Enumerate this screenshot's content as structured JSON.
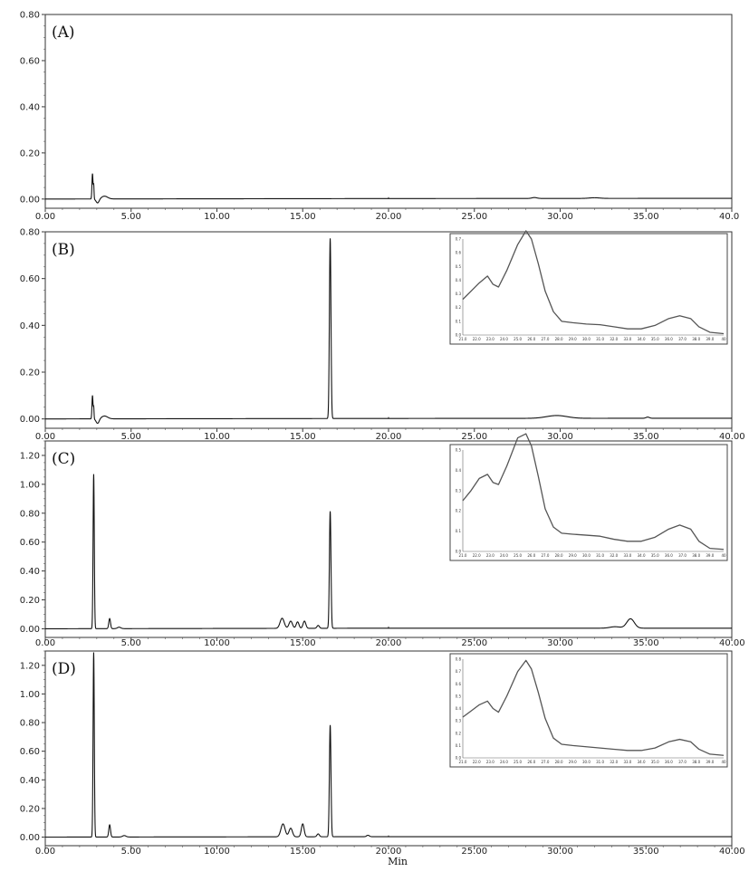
{
  "chart_data": [
    {
      "type": "line",
      "panel_label": "(A)",
      "xlabel": "",
      "ylabel": "",
      "xlim": [
        0,
        40
      ],
      "ylim": [
        -0.04,
        0.8
      ],
      "x_ticks": [
        "0.00",
        "5.00",
        "10.00",
        "15.00",
        "20.00",
        "25.00",
        "30.00",
        "35.00",
        "40.0"
      ],
      "y_ticks": [
        {
          "v": 0,
          "t": "0.00"
        },
        {
          "v": 0.2,
          "t": "0.20"
        },
        {
          "v": 0.4,
          "t": "0.40"
        },
        {
          "v": 0.6,
          "t": "0.60"
        },
        {
          "v": 0.8,
          "t": "0.80"
        }
      ],
      "series": [
        {
          "peaks": [
            [
              2.75,
              0.11,
              0.03
            ],
            [
              2.82,
              0.06,
              0.02
            ],
            [
              3.45,
              0.012,
              0.18
            ],
            [
              28.5,
              0.004,
              0.15
            ],
            [
              32.0,
              0.003,
              0.3
            ]
          ],
          "dips": [
            [
              3.05,
              0.018,
              0.09
            ]
          ],
          "drift": [
            [
              20,
              0.002
            ],
            [
              40,
              0.003
            ]
          ]
        }
      ]
    },
    {
      "type": "line",
      "panel_label": "(B)",
      "xlabel": "",
      "ylabel": "",
      "xlim": [
        0,
        40
      ],
      "ylim": [
        -0.04,
        0.8
      ],
      "x_ticks": [
        "0.00",
        "5.00",
        "10.00",
        "15.00",
        "20.00",
        "25.00",
        "30.00",
        "35.00",
        "40.00"
      ],
      "y_ticks": [
        {
          "v": 0,
          "t": "0.00"
        },
        {
          "v": 0.2,
          "t": "0.20"
        },
        {
          "v": 0.4,
          "t": "0.40"
        },
        {
          "v": 0.6,
          "t": "0.60"
        },
        {
          "v": 0.8,
          "t": "0.80"
        }
      ],
      "series": [
        {
          "peaks": [
            [
              2.75,
              0.1,
              0.03
            ],
            [
              2.82,
              0.05,
              0.02
            ],
            [
              3.45,
              0.012,
              0.18
            ],
            [
              16.6,
              0.77,
              0.045
            ],
            [
              29.8,
              0.012,
              0.6
            ],
            [
              35.1,
              0.005,
              0.1
            ]
          ],
          "dips": [
            [
              3.05,
              0.02,
              0.09
            ]
          ],
          "drift": [
            [
              20,
              0.002
            ],
            [
              40,
              0.003
            ]
          ]
        }
      ],
      "inset": {
        "type": "line",
        "x_ticks": [
          "21.0",
          "22.0",
          "23.0",
          "24.0",
          "25.0",
          "26.0",
          "27.0",
          "28.0",
          "29.0",
          "30.0",
          "31.0",
          "32.0",
          "33.0",
          "34.0",
          "35.0",
          "36.0",
          "37.0",
          "38.0",
          "39.0",
          "40"
        ],
        "y_ticks": [
          "0.0",
          "0.1",
          "0.2",
          "0.3",
          "0.4",
          "0.5",
          "0.6",
          "0.7"
        ],
        "x": [
          21,
          21.6,
          22.2,
          22.8,
          23.2,
          23.6,
          24.2,
          25,
          25.6,
          26,
          26.5,
          27,
          27.6,
          28.2,
          29,
          30,
          31,
          32,
          33,
          34,
          35,
          36,
          36.8,
          37.6,
          38.2,
          39,
          40
        ],
        "y": [
          0.26,
          0.32,
          0.38,
          0.43,
          0.37,
          0.35,
          0.47,
          0.66,
          0.76,
          0.7,
          0.52,
          0.32,
          0.17,
          0.1,
          0.09,
          0.08,
          0.075,
          0.06,
          0.045,
          0.045,
          0.07,
          0.12,
          0.14,
          0.12,
          0.06,
          0.02,
          0.01
        ]
      }
    },
    {
      "type": "line",
      "panel_label": "(C)",
      "xlabel": "",
      "ylabel": "",
      "xlim": [
        0,
        40
      ],
      "ylim": [
        -0.06,
        1.3
      ],
      "x_ticks": [
        "0.00",
        "5.00",
        "10.00",
        "15.00",
        "20.00",
        "25.00",
        "30.00",
        "35.00",
        "40.00"
      ],
      "y_ticks": [
        {
          "v": 0,
          "t": "0.00"
        },
        {
          "v": 0.2,
          "t": "0.20"
        },
        {
          "v": 0.4,
          "t": "0.40"
        },
        {
          "v": 0.6,
          "t": "0.60"
        },
        {
          "v": 0.8,
          "t": "0.80"
        },
        {
          "v": 1.0,
          "t": "1.00"
        },
        {
          "v": 1.2,
          "t": "1.20"
        }
      ],
      "series": [
        {
          "peaks": [
            [
              2.82,
              1.07,
              0.035
            ],
            [
              3.75,
              0.07,
              0.05
            ],
            [
              4.3,
              0.01,
              0.1
            ],
            [
              13.8,
              0.07,
              0.12
            ],
            [
              14.3,
              0.05,
              0.1
            ],
            [
              14.7,
              0.045,
              0.08
            ],
            [
              15.1,
              0.05,
              0.08
            ],
            [
              15.9,
              0.02,
              0.07
            ],
            [
              16.6,
              0.81,
              0.045
            ],
            [
              33.2,
              0.01,
              0.3
            ],
            [
              34.1,
              0.065,
              0.22
            ]
          ],
          "dips": [],
          "drift": [
            [
              20,
              0.004
            ],
            [
              40,
              0.004
            ]
          ]
        }
      ],
      "inset": {
        "type": "line",
        "x_ticks": [
          "21.0",
          "22.0",
          "23.0",
          "24.0",
          "25.0",
          "26.0",
          "27.0",
          "28.0",
          "29.0",
          "30.0",
          "31.0",
          "32.0",
          "33.0",
          "34.0",
          "35.0",
          "36.0",
          "37.0",
          "38.0",
          "39.0",
          "40"
        ],
        "y_ticks": [
          "0.0",
          "0.1",
          "0.2",
          "0.3",
          "0.4",
          "0.5"
        ],
        "x": [
          21,
          21.6,
          22.2,
          22.8,
          23.2,
          23.6,
          24.2,
          25,
          25.6,
          26,
          26.5,
          27,
          27.6,
          28.2,
          29,
          30,
          31,
          32,
          33,
          34,
          35,
          36,
          36.8,
          37.6,
          38.2,
          39,
          40
        ],
        "y": [
          0.25,
          0.3,
          0.36,
          0.38,
          0.34,
          0.33,
          0.42,
          0.56,
          0.58,
          0.52,
          0.37,
          0.21,
          0.12,
          0.09,
          0.085,
          0.08,
          0.075,
          0.06,
          0.05,
          0.05,
          0.07,
          0.11,
          0.13,
          0.11,
          0.05,
          0.015,
          0.01
        ]
      }
    },
    {
      "type": "line",
      "panel_label": "(D)",
      "xlabel": "Min",
      "ylabel": "",
      "xlim": [
        0,
        40
      ],
      "ylim": [
        -0.06,
        1.3
      ],
      "x_ticks": [
        "0.00",
        "5.00",
        "10.00",
        "15.00",
        "20.00",
        "25.00",
        "30.00",
        "35.00",
        "40.00"
      ],
      "y_ticks": [
        {
          "v": 0,
          "t": "0.00"
        },
        {
          "v": 0.2,
          "t": "0.20"
        },
        {
          "v": 0.4,
          "t": "0.40"
        },
        {
          "v": 0.6,
          "t": "0.60"
        },
        {
          "v": 0.8,
          "t": "0.80"
        },
        {
          "v": 1.0,
          "t": "1.00"
        },
        {
          "v": 1.2,
          "t": "1.20"
        }
      ],
      "series": [
        {
          "peaks": [
            [
              2.82,
              1.29,
              0.035
            ],
            [
              3.75,
              0.085,
              0.05
            ],
            [
              4.6,
              0.01,
              0.1
            ],
            [
              13.85,
              0.09,
              0.12
            ],
            [
              14.3,
              0.06,
              0.1
            ],
            [
              15.0,
              0.09,
              0.08
            ],
            [
              15.9,
              0.02,
              0.07
            ],
            [
              16.6,
              0.78,
              0.045
            ],
            [
              18.8,
              0.01,
              0.08
            ]
          ],
          "dips": [],
          "drift": [
            [
              20,
              0.003
            ],
            [
              40,
              0.003
            ]
          ]
        }
      ],
      "inset": {
        "type": "line",
        "x_ticks": [
          "21.0",
          "22.0",
          "23.0",
          "24.0",
          "25.0",
          "26.0",
          "27.0",
          "28.0",
          "29.0",
          "30.0",
          "31.0",
          "32.0",
          "33.0",
          "34.0",
          "35.0",
          "36.0",
          "37.0",
          "38.0",
          "39.0",
          "40"
        ],
        "y_ticks": [
          "0.0",
          "0.1",
          "0.2",
          "0.3",
          "0.4",
          "0.5",
          "0.6",
          "0.7",
          "0.8"
        ],
        "x": [
          21,
          21.6,
          22.2,
          22.8,
          23.2,
          23.6,
          24.2,
          25,
          25.6,
          26,
          26.5,
          27,
          27.6,
          28.2,
          29,
          30,
          31,
          32,
          33,
          34,
          35,
          36,
          36.8,
          37.6,
          38.2,
          39,
          40
        ],
        "y": [
          0.33,
          0.38,
          0.43,
          0.46,
          0.4,
          0.37,
          0.5,
          0.7,
          0.79,
          0.72,
          0.53,
          0.32,
          0.16,
          0.11,
          0.1,
          0.09,
          0.08,
          0.07,
          0.06,
          0.06,
          0.08,
          0.13,
          0.15,
          0.13,
          0.07,
          0.03,
          0.02
        ]
      }
    }
  ]
}
